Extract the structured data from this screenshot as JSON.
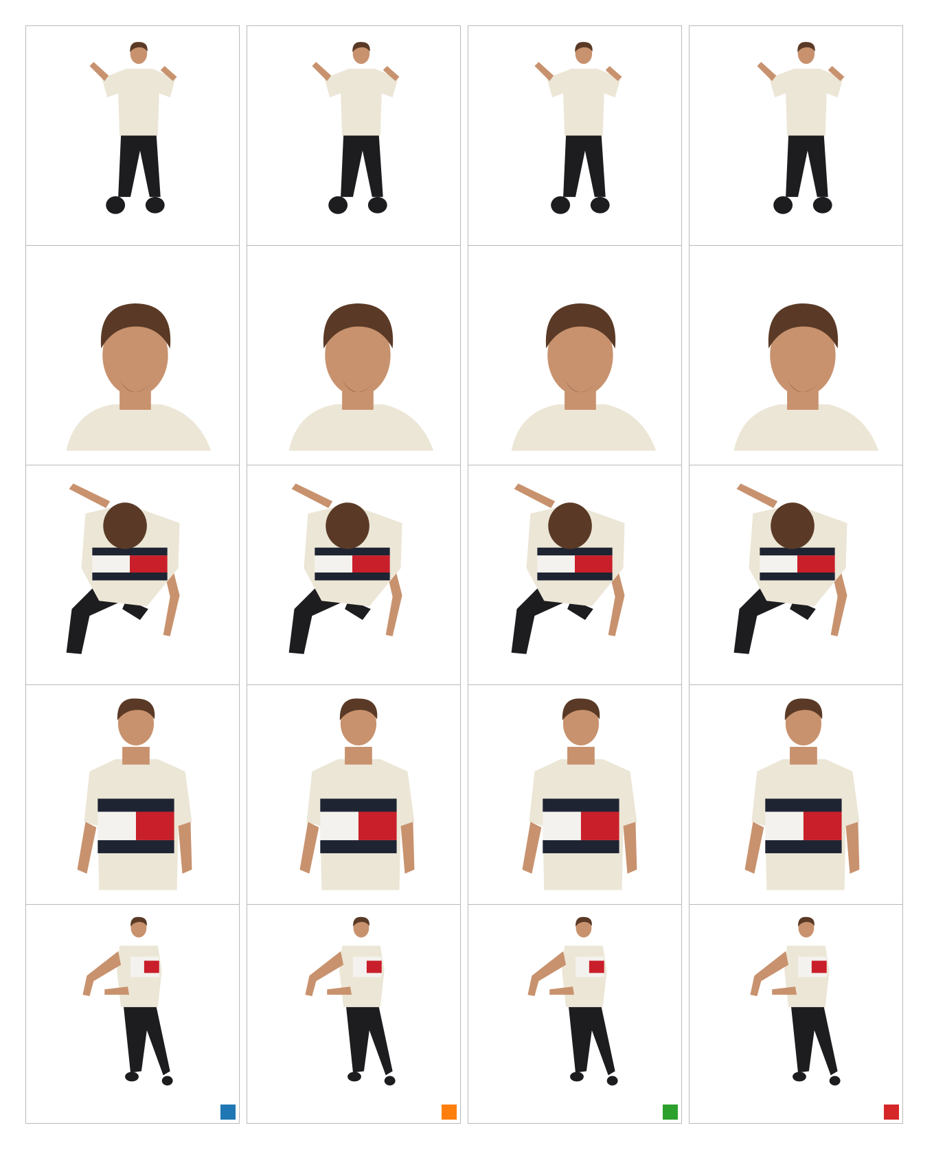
{
  "grid": {
    "columns": [
      {
        "method_color": "#1f77b4"
      },
      {
        "method_color": "#ff7f0e"
      },
      {
        "method_color": "#2ca02c"
      },
      {
        "method_color": "#d62728"
      }
    ],
    "rows": [
      {
        "view": "back-full-body"
      },
      {
        "view": "head-closeup"
      },
      {
        "view": "top-down"
      },
      {
        "view": "upper-body-front"
      },
      {
        "view": "three-quarter-full-body"
      }
    ]
  },
  "palette": {
    "shirt": "#ece6d6",
    "skin": "#c8926e",
    "hair": "#5a3a26",
    "pants": "#1d1c1f",
    "logo_red": "#c81f2a",
    "logo_navy": "#1f2433",
    "logo_white": "#f4f2ee"
  }
}
